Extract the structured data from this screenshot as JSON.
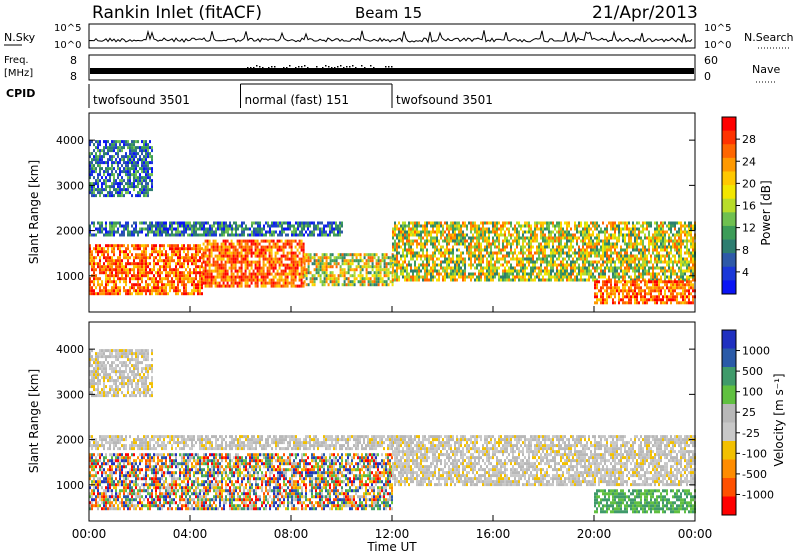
{
  "header": {
    "title": "Rankin Inlet (fitACF)",
    "beam": "Beam 15",
    "date": "21/Apr/2013"
  },
  "top_panels": {
    "nsky": {
      "label": "N.Sky",
      "tick_top": "10^5",
      "tick_bottom": "10^0",
      "right_label": "N.Search"
    },
    "freq": {
      "label_line1": "Freq.",
      "label_line2": "[MHz]",
      "tick_top": "8",
      "tick_bottom": "8",
      "right_tick_top": "60",
      "right_tick_bottom": "0",
      "right_label": "Nave"
    },
    "cpid": {
      "label": "CPID",
      "segments": [
        {
          "start_ut": 0.0,
          "end_ut": 6.0,
          "text": "twofsound 3501"
        },
        {
          "start_ut": 6.0,
          "end_ut": 12.0,
          "text": "normal (fast) 151"
        },
        {
          "start_ut": 12.0,
          "end_ut": 24.0,
          "text": "twofsound 3501"
        }
      ]
    }
  },
  "chart_data": [
    {
      "type": "heatmap",
      "name": "power",
      "ylabel": "Slant Range [km]",
      "ylim": [
        200,
        4600
      ],
      "yticks": [
        1000,
        2000,
        3000,
        4000
      ],
      "xlim": [
        0,
        24
      ],
      "colorbar": {
        "label": "Power [dB]",
        "ticks": [
          "28",
          "24",
          "20",
          "16",
          "12",
          "8",
          "4"
        ],
        "colors": [
          "#ff0000",
          "#ff3300",
          "#ff6600",
          "#ff9900",
          "#ffc800",
          "#f2e600",
          "#b8dc2a",
          "#6fc050",
          "#3c9c58",
          "#2d7d70",
          "#2d59a8",
          "#1a37d8",
          "#0a14f5"
        ]
      },
      "bands": [
        {
          "t0": 0.0,
          "t1": 4.5,
          "r0": 600,
          "r1": 1700,
          "level": "high"
        },
        {
          "t0": 4.5,
          "t1": 8.5,
          "r0": 800,
          "r1": 1800,
          "level": "high"
        },
        {
          "t0": 8.5,
          "t1": 12.0,
          "r0": 800,
          "r1": 1500,
          "level": "mid"
        },
        {
          "t0": 12.0,
          "t1": 24.0,
          "r0": 900,
          "r1": 2200,
          "level": "mid"
        },
        {
          "t0": 0.0,
          "t1": 10.0,
          "r0": 1900,
          "r1": 2200,
          "level": "low"
        },
        {
          "t0": 0.0,
          "t1": 2.5,
          "r0": 2800,
          "r1": 4000,
          "level": "low"
        },
        {
          "t0": 20.0,
          "t1": 24.0,
          "r0": 400,
          "r1": 900,
          "level": "high"
        }
      ]
    },
    {
      "type": "heatmap",
      "name": "velocity",
      "ylabel": "Slant Range [km]",
      "xlabel": "Time UT",
      "ylim": [
        200,
        4600
      ],
      "yticks": [
        1000,
        2000,
        3000,
        4000
      ],
      "xlim": [
        0,
        24
      ],
      "xticks": [
        "00:00",
        "04:00",
        "08:00",
        "12:00",
        "16:00",
        "20:00",
        "00:00"
      ],
      "colorbar": {
        "label": "Velocity [m s⁻¹]",
        "ticks": [
          "1000",
          "500",
          "100",
          "25",
          "-25",
          "-100",
          "-500",
          "-1000"
        ],
        "colors": [
          "#2030c0",
          "#2a5aa8",
          "#3f9a6a",
          "#60c040",
          "#b8b8b8",
          "#c8c8c8",
          "#f2c000",
          "#ff8c00",
          "#ff5000",
          "#ff0000"
        ]
      },
      "bands": [
        {
          "t0": 0.0,
          "t1": 12.0,
          "r0": 500,
          "r1": 1700,
          "level": "mixed"
        },
        {
          "t0": 12.0,
          "t1": 24.0,
          "r0": 1000,
          "r1": 2100,
          "level": "gray"
        },
        {
          "t0": 0.0,
          "t1": 12.0,
          "r0": 1800,
          "r1": 2100,
          "level": "gray"
        },
        {
          "t0": 0.0,
          "t1": 2.5,
          "r0": 3000,
          "r1": 4000,
          "level": "gray"
        },
        {
          "t0": 20.0,
          "t1": 24.0,
          "r0": 400,
          "r1": 900,
          "level": "green"
        }
      ]
    }
  ]
}
